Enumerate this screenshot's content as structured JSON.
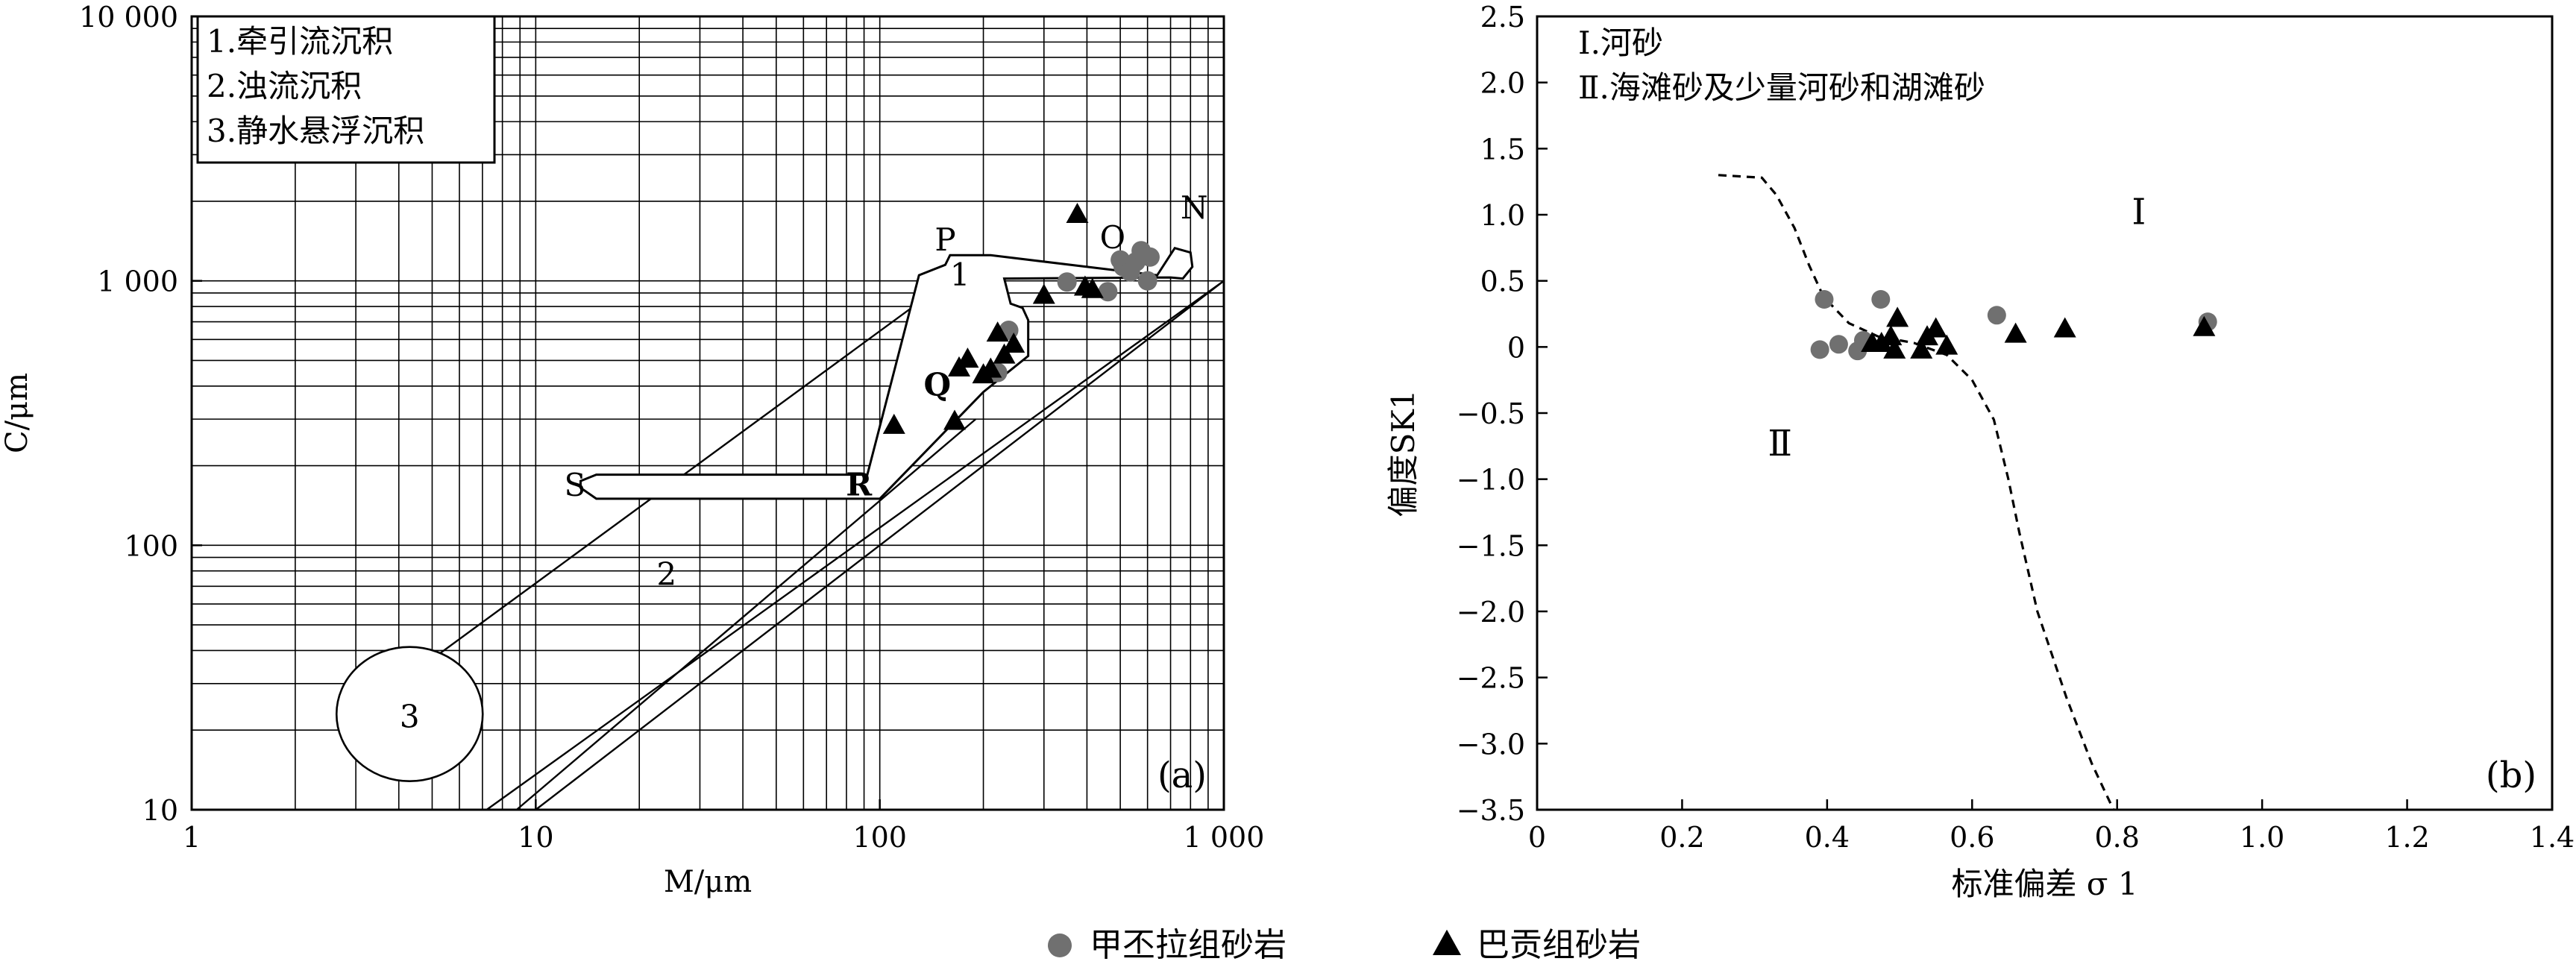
{
  "chart_data": [
    {
      "type": "scatter",
      "panel_label": "(a)",
      "xlabel": "M/μm",
      "ylabel": "C/μm",
      "x_scale": "log",
      "y_scale": "log",
      "xlim": [
        1,
        1000
      ],
      "ylim": [
        10,
        10000
      ],
      "x_ticks": [
        {
          "v": 1,
          "label": "1"
        },
        {
          "v": 10,
          "label": "10"
        },
        {
          "v": 100,
          "label": "100"
        },
        {
          "v": 1000,
          "label": "1 000"
        }
      ],
      "y_ticks": [
        {
          "v": 10,
          "label": "10"
        },
        {
          "v": 100,
          "label": "100"
        },
        {
          "v": 1000,
          "label": "1 000"
        },
        {
          "v": 10000,
          "label": "10 000"
        }
      ],
      "grid": true,
      "legend_box": [
        "1.牵引流沉积",
        "2.浊流沉积",
        "3.静水悬浮沉积"
      ],
      "region_labels": [
        {
          "text": "P",
          "x": 155,
          "y": 1400
        },
        {
          "text": "1",
          "x": 171,
          "y": 1030
        },
        {
          "text": "O",
          "x": 475,
          "y": 1425
        },
        {
          "text": "N",
          "x": 820,
          "y": 1850
        },
        {
          "text": "Q",
          "x": 147,
          "y": 395,
          "bold": true
        },
        {
          "text": "R",
          "x": 87,
          "y": 166,
          "bold": true
        },
        {
          "text": "S",
          "x": 13,
          "y": 165
        },
        {
          "text": "2",
          "x": 24,
          "y": 76
        },
        {
          "text": "3",
          "x": 4.3,
          "y": 22
        }
      ],
      "series": [
        {
          "name": "甲丕拉组砂岩",
          "color": "#707070",
          "x": [
            220,
            237,
            350,
            460,
            500,
            510,
            535,
            555,
            575,
            600,
            610
          ],
          "y": [
            450,
            650,
            990,
            910,
            1200,
            1130,
            1080,
            1180,
            1300,
            1000,
            1230
          ]
        },
        {
          "name": "巴贡组砂岩",
          "color": "#000000",
          "x": [
            110,
            165,
            170,
            180,
            200,
            210,
            220,
            230,
            245,
            300,
            375,
            395,
            415
          ],
          "y": [
            282,
            292,
            465,
            502,
            438,
            460,
            630,
            520,
            572,
            875,
            1770,
            940,
            920
          ]
        }
      ]
    },
    {
      "type": "scatter",
      "panel_label": "(b)",
      "xlabel": "标准偏差 σ 1",
      "ylabel": "偏度SK1",
      "xlim": [
        0,
        1.4
      ],
      "ylim": [
        -3.5,
        2.5
      ],
      "x_ticks": [
        {
          "v": 0,
          "label": "0"
        },
        {
          "v": 0.2,
          "label": "0.2"
        },
        {
          "v": 0.4,
          "label": "0.4"
        },
        {
          "v": 0.6,
          "label": "0.6"
        },
        {
          "v": 0.8,
          "label": "0.8"
        },
        {
          "v": 1.0,
          "label": "1.0"
        },
        {
          "v": 1.2,
          "label": "1.2"
        },
        {
          "v": 1.4,
          "label": "1.4"
        }
      ],
      "y_ticks": [
        {
          "v": 2.5,
          "label": "2.5"
        },
        {
          "v": 2.0,
          "label": "2.0"
        },
        {
          "v": 1.5,
          "label": "1.5"
        },
        {
          "v": 1.0,
          "label": "1.0"
        },
        {
          "v": 0.5,
          "label": "0.5"
        },
        {
          "v": 0,
          "label": "0"
        },
        {
          "v": -0.5,
          "label": "−0.5"
        },
        {
          "v": -1.0,
          "label": "−1.0"
        },
        {
          "v": -1.5,
          "label": "−1.5"
        },
        {
          "v": -2.0,
          "label": "−2.0"
        },
        {
          "v": -2.5,
          "label": "−2.5"
        },
        {
          "v": -3.0,
          "label": "−3.0"
        },
        {
          "v": -3.5,
          "label": "−3.5"
        }
      ],
      "grid": false,
      "legend_box": [
        "Ⅰ.河砂",
        "Ⅱ.海滩砂及少量河砂和湖滩砂"
      ],
      "region_labels": [
        {
          "text": "Ⅰ",
          "x": 0.83,
          "y": 1.0
        },
        {
          "text": "Ⅱ",
          "x": 0.335,
          "y": -0.75
        }
      ],
      "boundary_curve": {
        "x": [
          0.25,
          0.31,
          0.33,
          0.355,
          0.375,
          0.395,
          0.43,
          0.47,
          0.52,
          0.565,
          0.6,
          0.63,
          0.65,
          0.665,
          0.69,
          0.73,
          0.765,
          0.795
        ],
        "y": [
          1.3,
          1.28,
          1.15,
          0.9,
          0.62,
          0.38,
          0.18,
          0.08,
          0.03,
          -0.06,
          -0.25,
          -0.55,
          -1.0,
          -1.4,
          -2.0,
          -2.65,
          -3.15,
          -3.5
        ]
      },
      "series": [
        {
          "name": "甲丕拉组砂岩",
          "color": "#707070",
          "x": [
            0.39,
            0.396,
            0.416,
            0.442,
            0.45,
            0.474,
            0.634,
            0.925
          ],
          "y": [
            -0.02,
            0.36,
            0.02,
            -0.03,
            0.05,
            0.36,
            0.24,
            0.19
          ]
        },
        {
          "name": "巴贡组砂岩",
          "color": "#000000",
          "x": [
            0.462,
            0.475,
            0.488,
            0.493,
            0.497,
            0.53,
            0.538,
            0.55,
            0.565,
            0.66,
            0.728,
            0.92
          ],
          "y": [
            0.02,
            0.02,
            0.07,
            -0.03,
            0.21,
            -0.03,
            0.07,
            0.13,
            0.0,
            0.09,
            0.13,
            0.14
          ]
        }
      ]
    }
  ],
  "legend": [
    {
      "label": "甲丕拉组砂岩",
      "marker": "circle",
      "color": "#707070"
    },
    {
      "label": "巴贡组砂岩",
      "marker": "triangle",
      "color": "#000000"
    }
  ]
}
